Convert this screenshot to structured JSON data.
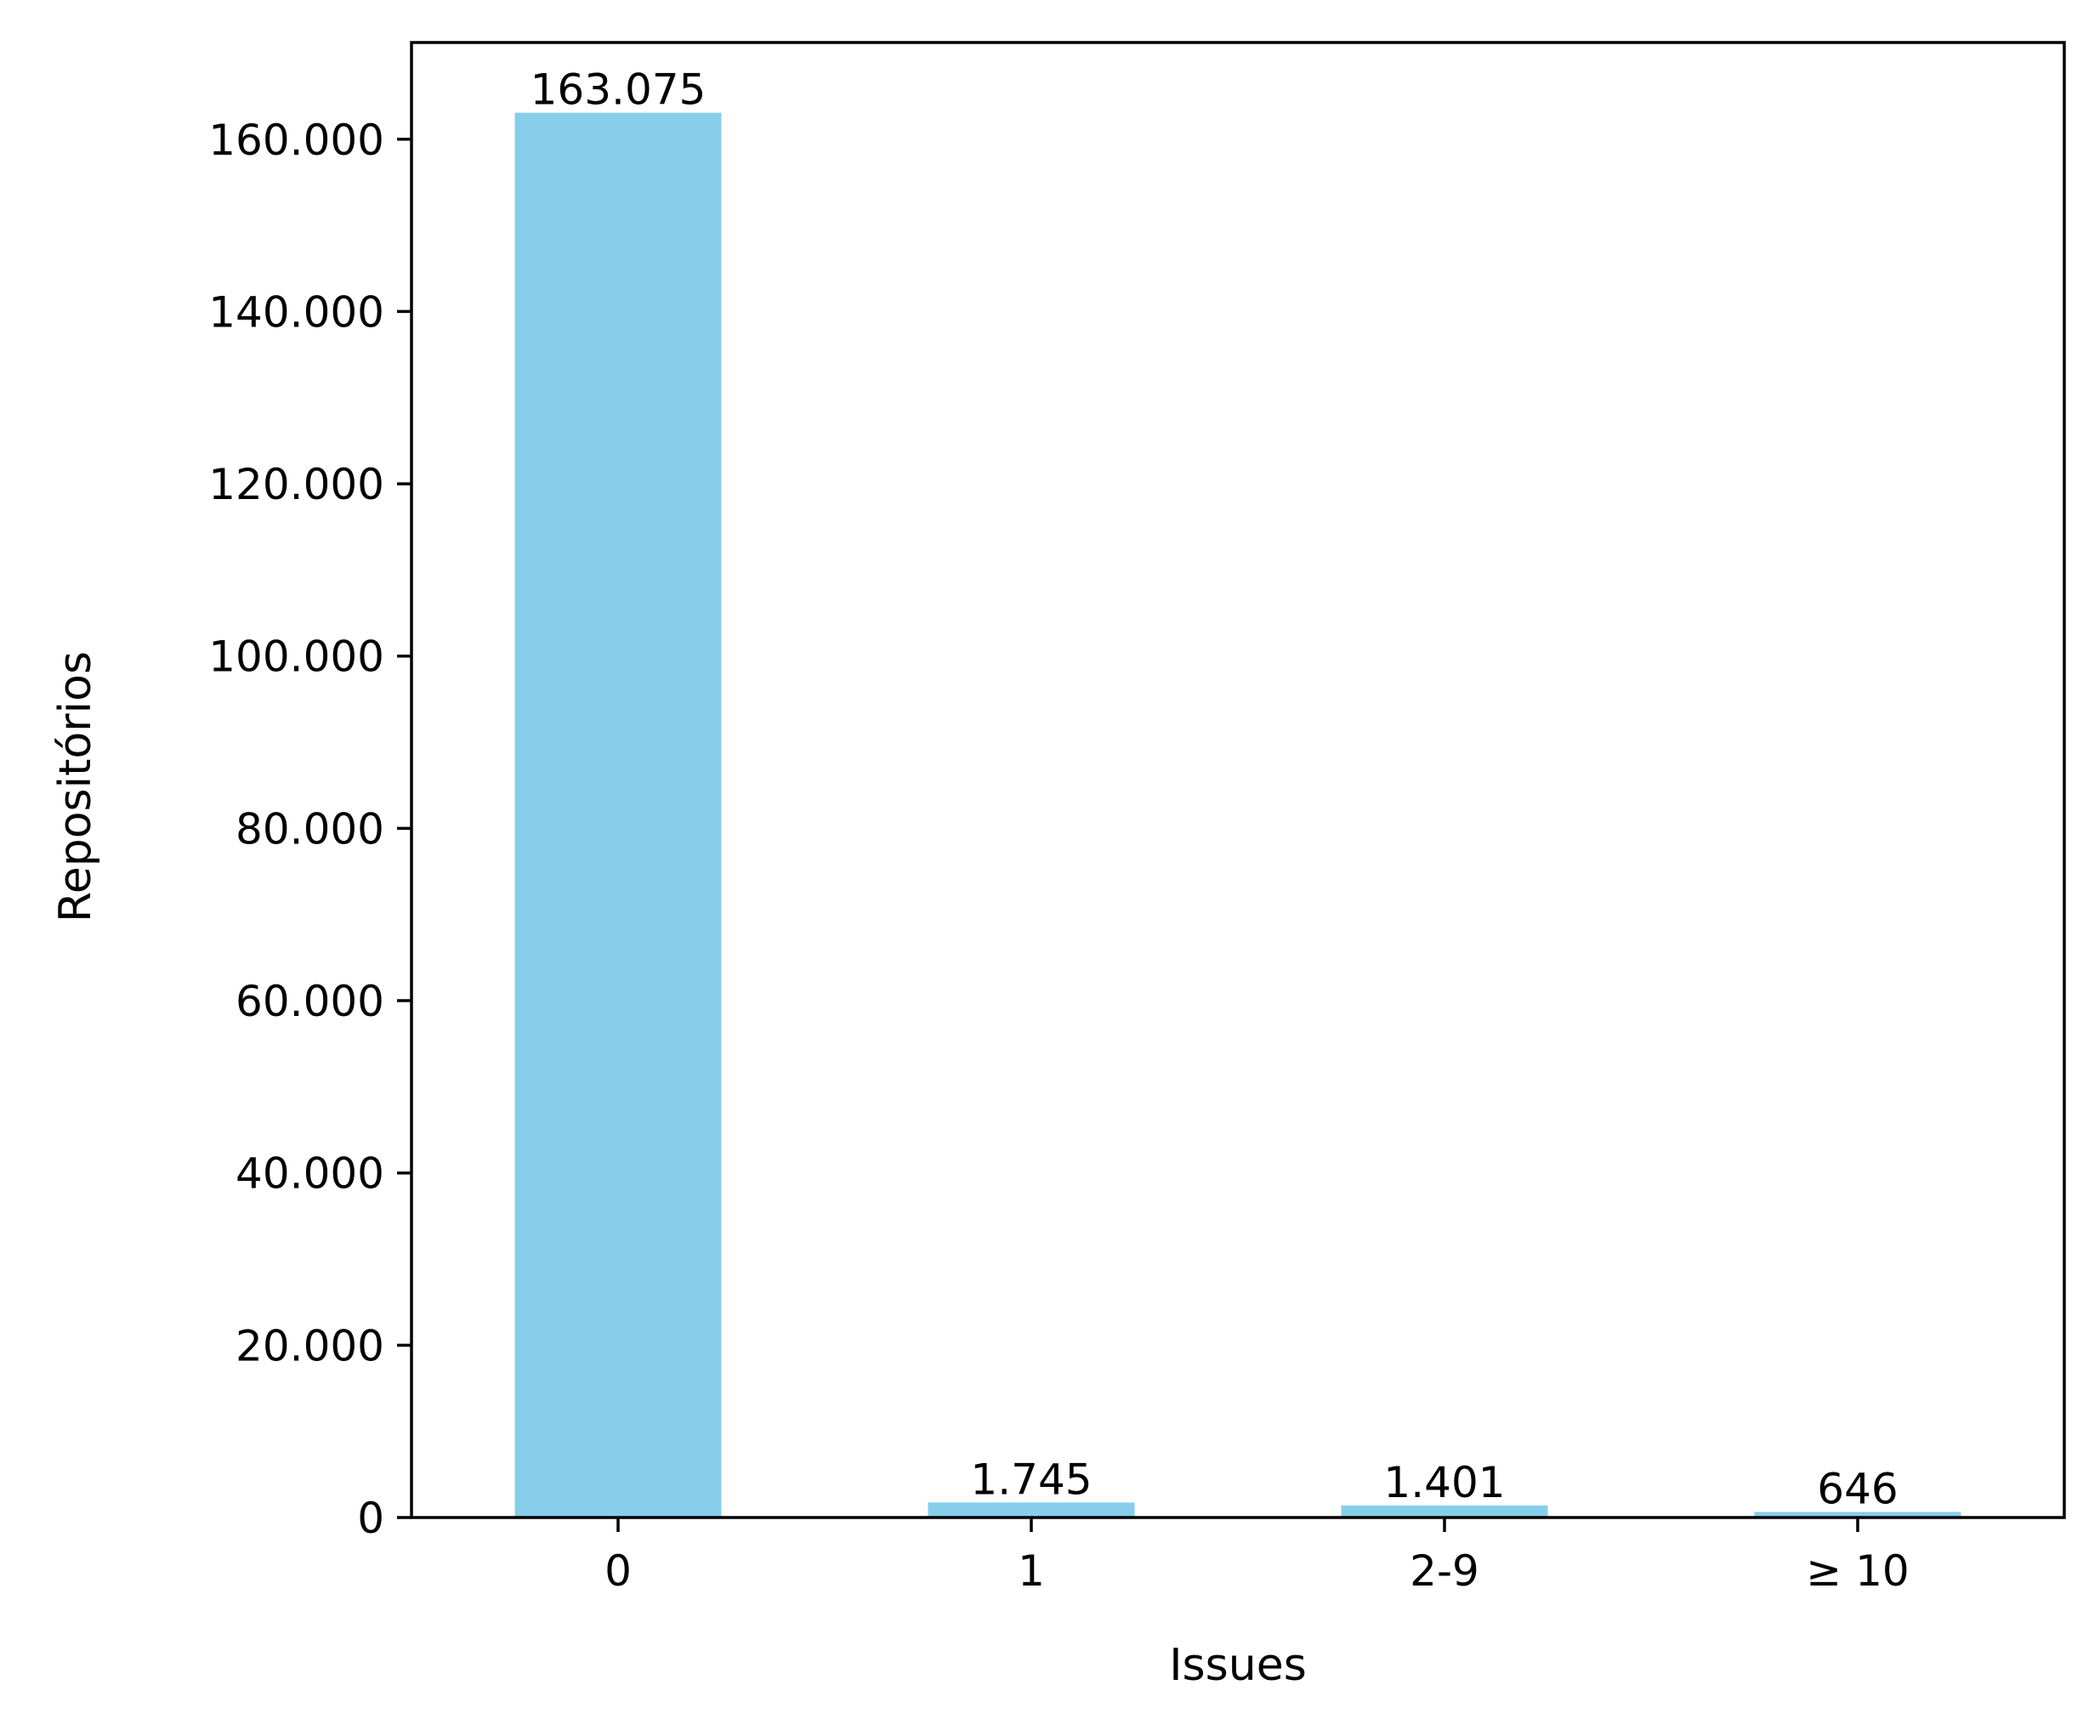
{
  "chart_data": {
    "type": "bar",
    "title": "",
    "xlabel": "Issues",
    "ylabel": "Repositórios",
    "categories": [
      "0",
      "1",
      "2-9",
      "≥ 10"
    ],
    "values": [
      163075,
      1745,
      1401,
      646
    ],
    "data_labels": [
      "163.075",
      "1.745",
      "1.401",
      "646"
    ],
    "ylim": [
      0,
      171229
    ],
    "yticks": [
      0,
      20000,
      40000,
      60000,
      80000,
      100000,
      120000,
      140000,
      160000
    ],
    "ytick_labels": [
      "0",
      "20.000",
      "40.000",
      "60.000",
      "80.000",
      "100.000",
      "120.000",
      "140.000",
      "160.000"
    ],
    "bar_color": "#87ceeb",
    "grid": false,
    "legend": "none"
  }
}
